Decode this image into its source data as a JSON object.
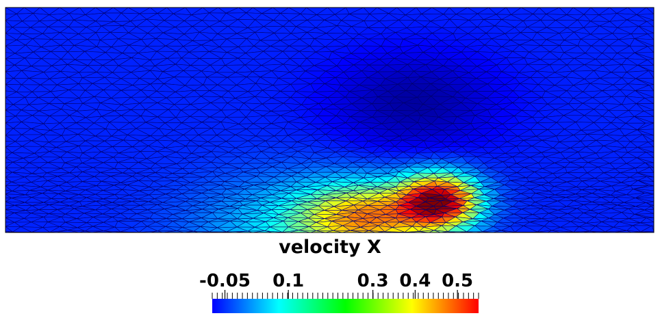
{
  "field": {
    "title": "velocity X",
    "colormap": "jet",
    "range": [
      -0.08,
      0.55
    ],
    "colorbar_ticks": [
      {
        "value": -0.05,
        "label": "-0.05"
      },
      {
        "value": 0.1,
        "label": "0.1"
      },
      {
        "value": 0.3,
        "label": "0.3"
      },
      {
        "value": 0.4,
        "label": "0.4"
      },
      {
        "value": 0.5,
        "label": "0.5"
      }
    ]
  },
  "colors": {
    "mesh_line": "#000070",
    "background": "#ffffff",
    "border": "#000000"
  }
}
